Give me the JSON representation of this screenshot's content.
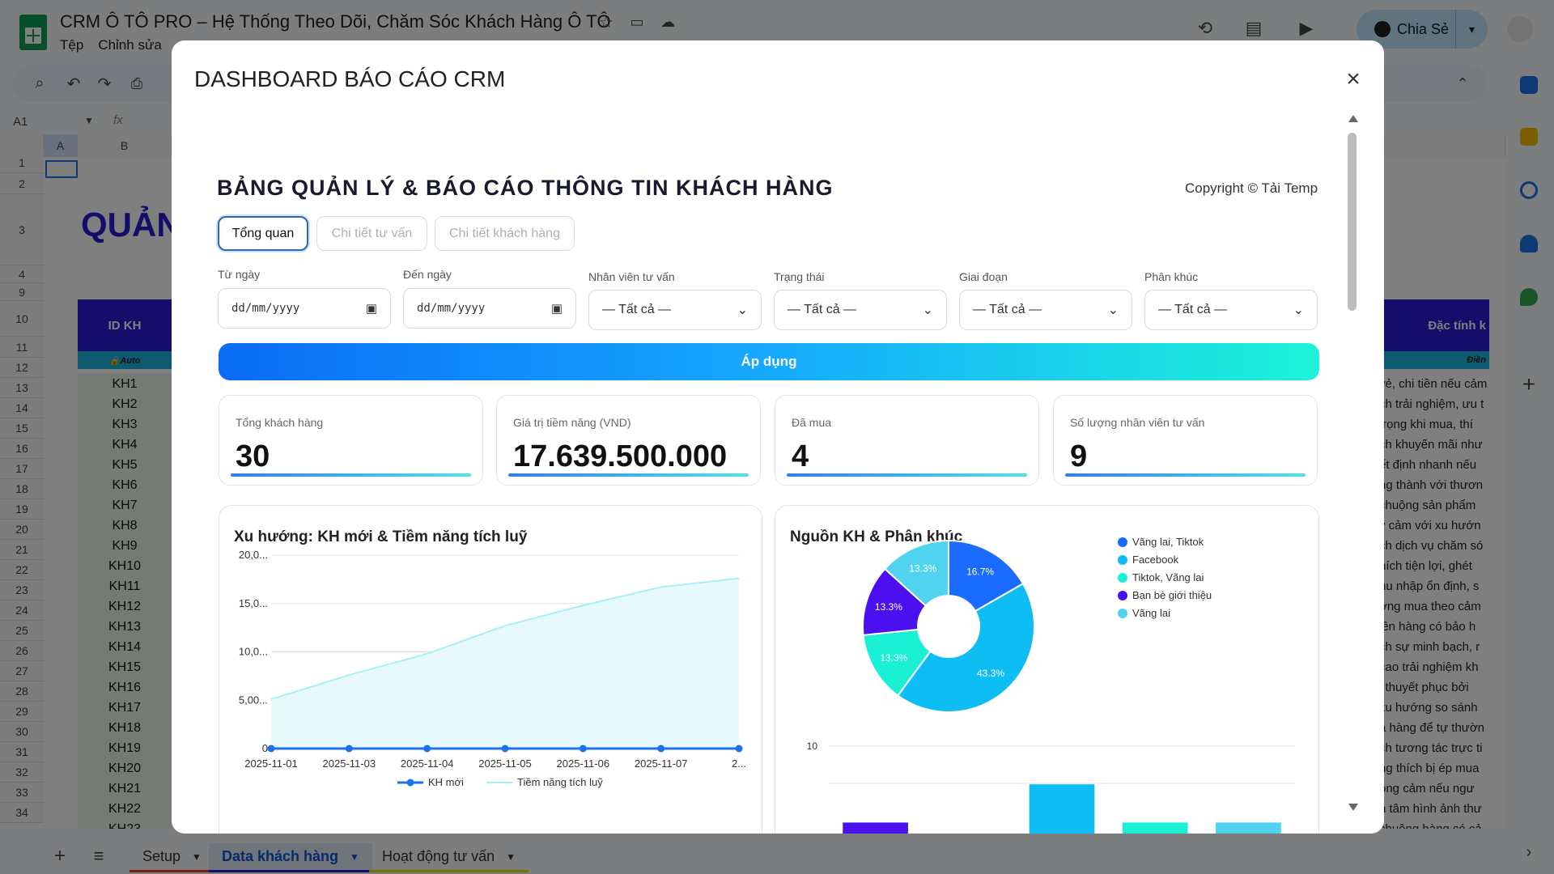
{
  "sheets": {
    "title": "CRM Ô TÔ PRO – Hệ Thống Theo Dõi, Chăm Sóc Khách Hàng Ô TÔ",
    "menu": [
      "Tệp",
      "Chỉnh sửa"
    ],
    "share_label": "Chia Sẻ",
    "cell_ref": "A1",
    "fx": "fx",
    "columns": [
      "A",
      "B"
    ],
    "big_title": "QUẢN LÝ",
    "header_id": "ID KH",
    "header_auto": "🔒Auto",
    "header_right": "Đặc tính k",
    "header_right_sub": "Điền",
    "rows": [
      "1",
      "2",
      "3",
      "4",
      "9",
      "10",
      "11",
      "12",
      "13",
      "14",
      "15",
      "16",
      "17",
      "18",
      "19",
      "20",
      "21",
      "22",
      "23",
      "24",
      "25",
      "26",
      "27",
      "28",
      "29",
      "30",
      "31",
      "32",
      "33",
      "34"
    ],
    "ids": [
      "KH1",
      "KH2",
      "KH3",
      "KH4",
      "KH5",
      "KH6",
      "KH7",
      "KH8",
      "KH9",
      "KH10",
      "KH11",
      "KH12",
      "KH13",
      "KH14",
      "KH15",
      "KH16",
      "KH17",
      "KH18",
      "KH19",
      "KH20",
      "KH21",
      "KH22",
      "KH23"
    ],
    "right_texts": [
      "vẻ, chi tiền nếu cảm",
      "ch trải nghiệm, ưu t",
      "trọng khi mua, thí",
      "ch khuyến mãi như",
      "ết định nhanh nếu",
      "ng thành với thươn",
      "chuộng sản phẩm",
      "y cảm với xu hướn",
      "ch dịch vụ chăm só",
      "hích tiện lợi, ghét",
      "hu nhập ổn định, s",
      "ờng mua theo cảm",
      "iên hàng có bảo h",
      "ch sự minh bạch, r",
      "cao trải nghiệm kh",
      "i thuyết phục bởi",
      "xu hướng so sánh",
      "a hàng để tự thườn",
      "ch tương tác trực ti",
      "ng thích bị ép mua",
      "ồng cảm nếu ngư",
      "n tâm hình ảnh thư",
      "chuộng hàng có cả"
    ],
    "tabs": [
      "Setup",
      "Data khách hàng",
      "Hoạt động tư vấn"
    ]
  },
  "modal": {
    "title": "DASHBOARD BÁO CÁO CRM",
    "close": "×",
    "heading": "BẢNG QUẢN LÝ & BÁO CÁO THÔNG TIN KHÁCH HÀNG",
    "copyright": "Copyright © Tải Temp",
    "tabs": [
      "Tổng quan",
      "Chi tiết tư vấn",
      "Chi tiết khách hàng"
    ],
    "filters": {
      "from_label": "Từ ngày",
      "to_label": "Đến ngày",
      "date_placeholder": "dd/mm/yyyy",
      "staff_label": "Nhân viên tư vấn",
      "status_label": "Trạng thái",
      "stage_label": "Giai đoạn",
      "segment_label": "Phân khúc",
      "all": "— Tất cả —"
    },
    "apply_label": "Áp dụng",
    "kpis": [
      {
        "label": "Tổng khách hàng",
        "value": "30"
      },
      {
        "label": "Giá trị tiềm năng (VND)",
        "value": "17.639.500.000"
      },
      {
        "label": "Đã mua",
        "value": "4"
      },
      {
        "label": "Số lượng nhân viên tư vấn",
        "value": "9"
      }
    ]
  },
  "chart_data": [
    {
      "type": "line",
      "title": "Xu hướng: KH mới & Tiềm năng tích luỹ",
      "x": [
        "2025-11-01",
        "2025-11-03",
        "2025-11-04",
        "2025-11-05",
        "2025-11-06",
        "2025-11-07",
        "2..."
      ],
      "ytick_labels": [
        "0",
        "5,00...",
        "10,0...",
        "15,0...",
        "20,0..."
      ],
      "ylim": [
        0,
        20
      ],
      "grid": true,
      "legend": "bottom",
      "series": [
        {
          "name": "KH mới",
          "color": "#1a73e8",
          "values": [
            0,
            0,
            0,
            0,
            0,
            0,
            0
          ]
        },
        {
          "name": "Tiềm năng tích luỹ",
          "color": "#a7f0f9",
          "values": [
            5.1,
            7.6,
            9.8,
            12.7,
            14.8,
            16.7,
            17.6
          ]
        }
      ]
    },
    {
      "type": "pie",
      "title": "Nguồn KH & Phân khúc",
      "donut": true,
      "legend": "right",
      "slices": [
        {
          "label": "Vãng lai, Tiktok",
          "value": 16.7,
          "pct": "16.7%",
          "color": "#1a6bff"
        },
        {
          "label": "Facebook",
          "value": 43.3,
          "pct": "43.3%",
          "color": "#0fbdf5"
        },
        {
          "label": "Tiktok, Vãng lai",
          "value": 13.3,
          "pct": "13.3%",
          "color": "#19f0d6"
        },
        {
          "label": "Bạn bè giới thiệu",
          "value": 13.3,
          "pct": "13.3%",
          "color": "#4a10f0"
        },
        {
          "label": "Vãng lai",
          "value": 13.3,
          "pct": "13.3%",
          "color": "#4fd3ee"
        }
      ]
    },
    {
      "type": "bar",
      "ytick_labels": [
        "10"
      ],
      "ylim": [
        0,
        10
      ],
      "values": [
        2,
        null,
        6,
        2,
        2
      ],
      "colors": [
        "#4a10f0",
        "",
        "#0fbdf5",
        "#19f0d6",
        "#4fd3ee"
      ]
    }
  ]
}
